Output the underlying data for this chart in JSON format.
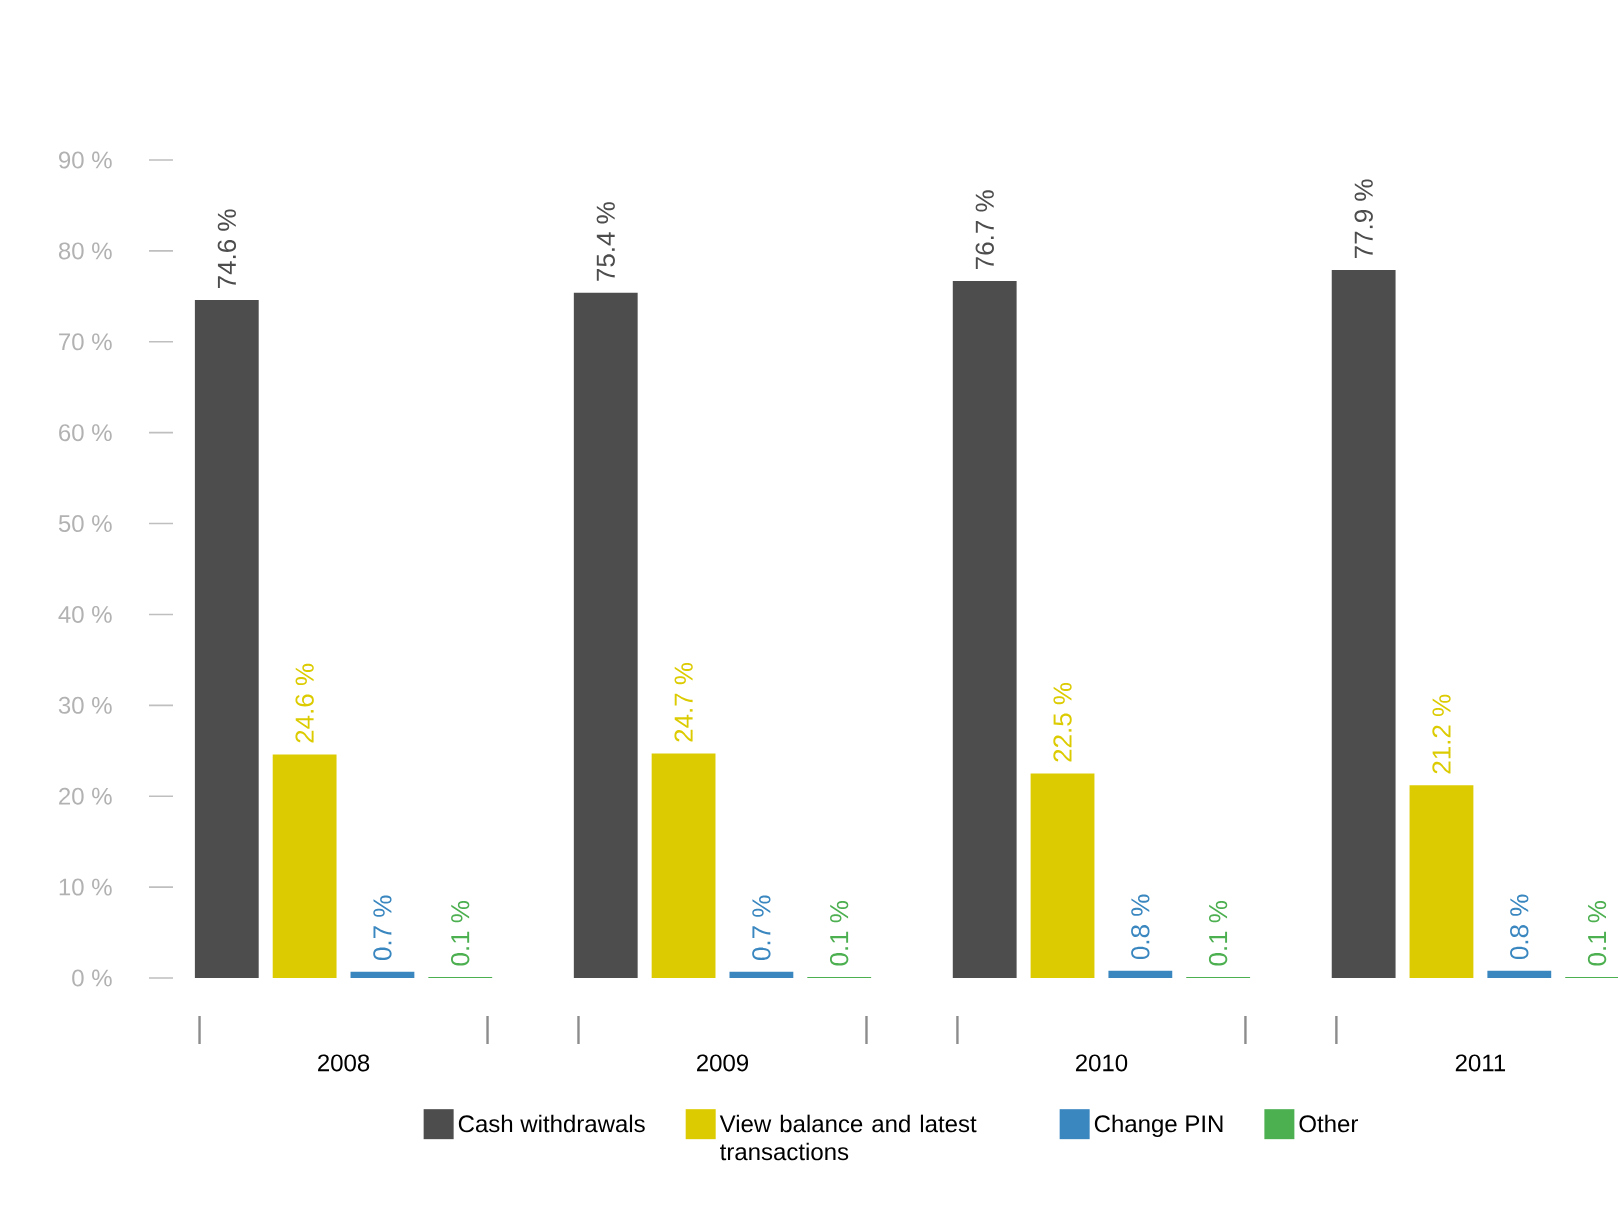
{
  "chart_data": {
    "type": "bar",
    "categories": [
      "2008",
      "2009",
      "2010",
      "2011"
    ],
    "series": [
      {
        "name": "Cash withdrawals",
        "color": "#4d4d4d",
        "values": [
          74.6,
          75.4,
          76.7,
          77.9
        ],
        "value_labels": [
          "74.6 %",
          "75.4 %",
          "76.7 %",
          "77.9 %"
        ]
      },
      {
        "name": "View balance and latest transactions",
        "color": "#dccb00",
        "values": [
          24.6,
          24.7,
          22.5,
          21.2
        ],
        "value_labels": [
          "24.6 %",
          "24.7 %",
          "22.5 %",
          "21.2 %"
        ]
      },
      {
        "name": "Change PIN",
        "color": "#3a87c0",
        "values": [
          0.7,
          0.7,
          0.8,
          0.8
        ],
        "value_labels": [
          "0.7 %",
          "0.7 %",
          "0.8 %",
          "0.8 %"
        ]
      },
      {
        "name": "Other",
        "color": "#4caf50",
        "values": [
          0.1,
          0.1,
          0.1,
          0.1
        ],
        "value_labels": [
          "0.1 %",
          "0.1 %",
          "0.1 %",
          "0.1 %"
        ]
      }
    ],
    "ylim": [
      0,
      90
    ],
    "yticks": [
      {
        "value": 0,
        "label": "0 %"
      },
      {
        "value": 10,
        "label": "10 %"
      },
      {
        "value": 20,
        "label": "20 %"
      },
      {
        "value": 30,
        "label": "30 %"
      },
      {
        "value": 40,
        "label": "40 %"
      },
      {
        "value": 50,
        "label": "50 %"
      },
      {
        "value": 60,
        "label": "60 %"
      },
      {
        "value": 70,
        "label": "70 %"
      },
      {
        "value": 80,
        "label": "80 %"
      },
      {
        "value": 90,
        "label": "90 %"
      }
    ],
    "grid": false,
    "legend": "bottom"
  }
}
